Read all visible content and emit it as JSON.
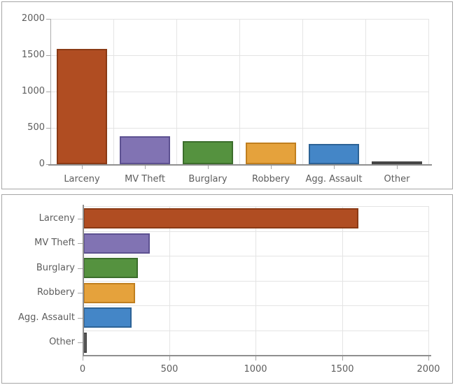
{
  "style": {
    "background": "#ffffff",
    "panel_border": "#a6a6a6",
    "grid_color": "#e4e4e4",
    "axis_color": "#8f8f8f",
    "tick_color": "#a6a6a6",
    "text_color": "#5d5d5d"
  },
  "chart_data": [
    {
      "type": "bar",
      "orientation": "vertical",
      "title": "",
      "xlabel": "",
      "ylabel": "",
      "categories": [
        "Larceny",
        "MV Theft",
        "Burglary",
        "Robbery",
        "Agg. Assault",
        "Other"
      ],
      "values": [
        1590,
        385,
        315,
        300,
        280,
        20
      ],
      "ylim": [
        0,
        2000
      ],
      "yticks": [
        0,
        500,
        1000,
        1500,
        2000
      ],
      "grid": true,
      "legend": false,
      "bar_colors": [
        {
          "fill": "#b04d22",
          "border": "#8a3a15"
        },
        {
          "fill": "#8173b3",
          "border": "#5d5191"
        },
        {
          "fill": "#55923f",
          "border": "#3c6e2c"
        },
        {
          "fill": "#e5a23c",
          "border": "#c07f1f"
        },
        {
          "fill": "#4486c7",
          "border": "#2d6396"
        },
        {
          "fill": "#6b6b6b",
          "border": "#454545"
        }
      ]
    },
    {
      "type": "bar",
      "orientation": "horizontal",
      "title": "",
      "xlabel": "",
      "ylabel": "",
      "categories": [
        "Larceny",
        "MV Theft",
        "Burglary",
        "Robbery",
        "Agg. Assault",
        "Other"
      ],
      "values": [
        1590,
        385,
        315,
        300,
        280,
        20
      ],
      "xlim": [
        0,
        2000
      ],
      "xticks": [
        0,
        500,
        1000,
        1500,
        2000
      ],
      "grid": true,
      "legend": false,
      "bar_colors": [
        {
          "fill": "#b04d22",
          "border": "#8a3a15"
        },
        {
          "fill": "#8173b3",
          "border": "#5d5191"
        },
        {
          "fill": "#55923f",
          "border": "#3c6e2c"
        },
        {
          "fill": "#e5a23c",
          "border": "#c07f1f"
        },
        {
          "fill": "#4486c7",
          "border": "#2d6396"
        },
        {
          "fill": "#6b6b6b",
          "border": "#454545"
        }
      ]
    }
  ]
}
